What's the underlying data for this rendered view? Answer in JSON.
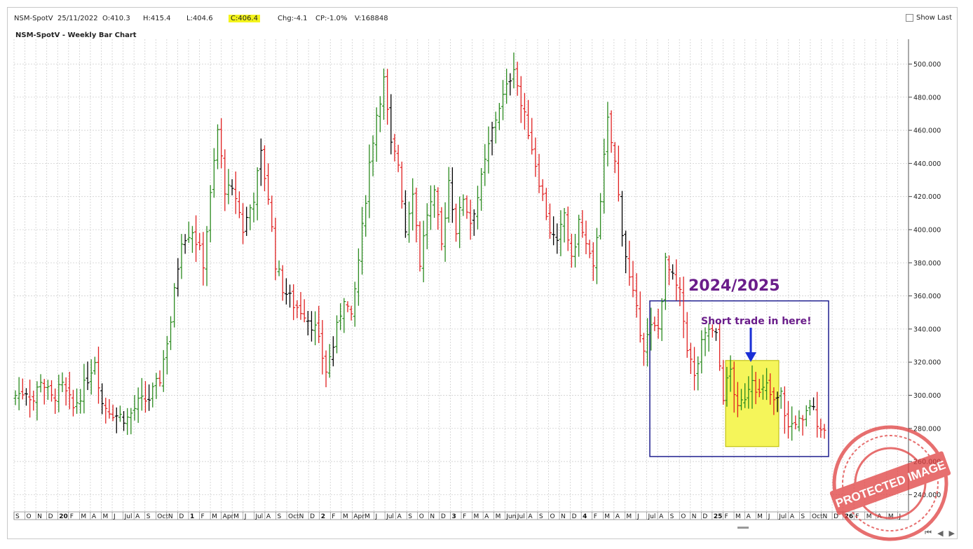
{
  "infobar": {
    "symbol": "NSM-SpotV",
    "date": "25/11/2022",
    "open": "O:410.3",
    "high": "H:415.4",
    "low": "L:404.6",
    "close": "C:406.4",
    "change": "Chg:-4.1",
    "change_pct": "CP:-1.0%",
    "volume": "V:168848"
  },
  "show_last_label": "Show Last",
  "chart_title": "NSM-SpotV - Weekly Bar Chart",
  "annotations": {
    "period_label": "2024/2025",
    "trade_label": "Short trade in here!"
  },
  "stamp_text": "PROTECTED IMAGE",
  "colors": {
    "up": "#2a8a1e",
    "down": "#e02020",
    "neutral": "#000000",
    "box": "#1f1f8f",
    "highlight": "#f5f55a",
    "annotation": "#6a1d8a",
    "arrow": "#1a2fd6",
    "stamp": "#e04040"
  },
  "nav_icons": [
    "rewind-icon",
    "prev-icon",
    "next-icon"
  ],
  "chart_data": {
    "type": "bar",
    "subtype": "ohlc",
    "title": "NSM-SpotV - Weekly Bar Chart",
    "y_axis_side": "right",
    "ylim": [
      230,
      515
    ],
    "y_ticks": [
      240,
      260,
      280,
      300,
      320,
      340,
      360,
      380,
      400,
      420,
      440,
      460,
      480,
      500
    ],
    "y_tick_labels": [
      "240.000",
      "260.000",
      "280.000",
      "300.000",
      "320.000",
      "340.000",
      "360.000",
      "380.000",
      "400.000",
      "420.000",
      "440.000",
      "460.000",
      "480.000",
      "500.000"
    ],
    "x_tick_labels": [
      "S",
      "O",
      "N",
      "D",
      "20",
      "F",
      "M",
      "A",
      "M",
      "J",
      "Jul",
      "A",
      "S",
      "Oct",
      "N",
      "D",
      "1",
      "F",
      "M",
      "Apr",
      "M",
      "J",
      "Jul",
      "A",
      "S",
      "Oct",
      "N",
      "D",
      "2",
      "F",
      "M",
      "Apr",
      "M",
      "J",
      "Jul",
      "A",
      "S",
      "O",
      "N",
      "D",
      "3",
      "F",
      "M",
      "A",
      "M",
      "Jun",
      "Jul",
      "A",
      "S",
      "O",
      "N",
      "D",
      "4",
      "F",
      "M",
      "A",
      "M",
      "J",
      "Jul",
      "A",
      "S",
      "O",
      "N",
      "D",
      "25",
      "F",
      "M",
      "A",
      "M",
      "J",
      "Jul",
      "A",
      "S",
      "Oct",
      "N",
      "D",
      "26",
      "F",
      "M",
      "A",
      "M",
      "J"
    ],
    "grid": true,
    "legend": "none",
    "series_anchors": [
      [
        0,
        300
      ],
      [
        3,
        303
      ],
      [
        5,
        297
      ],
      [
        7,
        310
      ],
      [
        10,
        298
      ],
      [
        13,
        305
      ],
      [
        16,
        292
      ],
      [
        19,
        305
      ],
      [
        22,
        322
      ],
      [
        24,
        295
      ],
      [
        28,
        288
      ],
      [
        31,
        286
      ],
      [
        34,
        295
      ],
      [
        37,
        298
      ],
      [
        40,
        310
      ],
      [
        43,
        345
      ],
      [
        46,
        395
      ],
      [
        49,
        400
      ],
      [
        52,
        380
      ],
      [
        54,
        420
      ],
      [
        56,
        460
      ],
      [
        58,
        425
      ],
      [
        61,
        420
      ],
      [
        63,
        400
      ],
      [
        66,
        420
      ],
      [
        68,
        445
      ],
      [
        70,
        420
      ],
      [
        72,
        380
      ],
      [
        74,
        365
      ],
      [
        77,
        355
      ],
      [
        80,
        350
      ],
      [
        83,
        340
      ],
      [
        86,
        315
      ],
      [
        88,
        330
      ],
      [
        91,
        360
      ],
      [
        93,
        345
      ],
      [
        96,
        400
      ],
      [
        98,
        440
      ],
      [
        100,
        470
      ],
      [
        102,
        490
      ],
      [
        104,
        450
      ],
      [
        106,
        440
      ],
      [
        108,
        400
      ],
      [
        110,
        425
      ],
      [
        112,
        380
      ],
      [
        114,
        410
      ],
      [
        116,
        420
      ],
      [
        118,
        390
      ],
      [
        120,
        430
      ],
      [
        122,
        400
      ],
      [
        124,
        420
      ],
      [
        126,
        405
      ],
      [
        128,
        420
      ],
      [
        130,
        440
      ],
      [
        132,
        460
      ],
      [
        134,
        475
      ],
      [
        136,
        485
      ],
      [
        138,
        500
      ],
      [
        140,
        475
      ],
      [
        142,
        460
      ],
      [
        144,
        440
      ],
      [
        146,
        420
      ],
      [
        148,
        400
      ],
      [
        150,
        390
      ],
      [
        152,
        410
      ],
      [
        154,
        380
      ],
      [
        156,
        405
      ],
      [
        158,
        390
      ],
      [
        160,
        375
      ],
      [
        162,
        420
      ],
      [
        164,
        465
      ],
      [
        166,
        440
      ],
      [
        168,
        400
      ],
      [
        170,
        370
      ],
      [
        172,
        350
      ],
      [
        174,
        330
      ],
      [
        176,
        340
      ],
      [
        178,
        340
      ],
      [
        180,
        380
      ],
      [
        182,
        370
      ],
      [
        184,
        360
      ],
      [
        186,
        330
      ],
      [
        188,
        310
      ],
      [
        190,
        330
      ],
      [
        192,
        340
      ],
      [
        194,
        335
      ],
      [
        196,
        300
      ],
      [
        198,
        315
      ],
      [
        200,
        290
      ],
      [
        202,
        300
      ],
      [
        204,
        312
      ],
      [
        206,
        300
      ],
      [
        208,
        305
      ],
      [
        210,
        295
      ],
      [
        212,
        300
      ],
      [
        214,
        280
      ],
      [
        216,
        285
      ],
      [
        218,
        282
      ],
      [
        220,
        295
      ],
      [
        222,
        285
      ],
      [
        224,
        278
      ]
    ],
    "series_notes": "Weekly OHLC bars (green = up, red = down, black = unchanged); values estimated from the right-hand price axis. The rightmost bar closes near 278.",
    "box_region": {
      "label": "2024/2025",
      "y_range": [
        263,
        357
      ]
    },
    "highlight_region": {
      "label": "Short trade in here!",
      "y_range": [
        269,
        321
      ]
    }
  }
}
